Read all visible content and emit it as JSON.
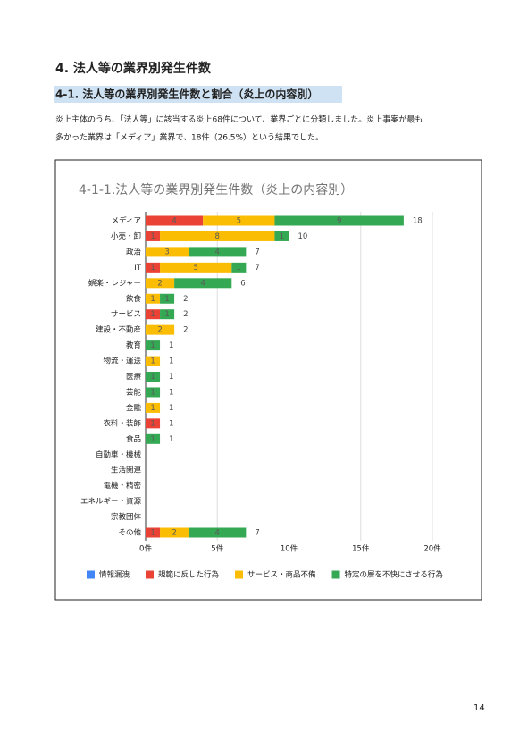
{
  "heading": "4. 法人等の業界別発生件数",
  "subheading": "4-1. 法人等の業界別発生件数と割合（炎上の内容別）",
  "paragraph": [
    "炎上主体のうち、「法人等」に該当する炎上68件について、業界ごとに分類しました。炎上事案が最も",
    "多かった業界は「メディア」業界で、18件（26.5%）という結果でした。"
  ],
  "chart_data": {
    "type": "bar",
    "orientation": "horizontal",
    "stacked": true,
    "title": "4-1-1.法人等の業界別発生件数（炎上の内容別）",
    "categories": [
      "メディア",
      "小売・卸",
      "政治",
      "IT",
      "娯楽・レジャー",
      "飲食",
      "サービス",
      "建設・不動産",
      "教育",
      "物流・運送",
      "医療",
      "芸能",
      "金融",
      "衣料・装飾",
      "食品",
      "自動車・機械",
      "生活関連",
      "電機・精密",
      "エネルギー・資源",
      "宗教団体",
      "その他"
    ],
    "series": [
      {
        "name": "情報漏洩",
        "color": "#4285f4",
        "values": [
          0,
          0,
          0,
          0,
          0,
          0,
          0,
          0,
          0,
          0,
          0,
          0,
          0,
          0,
          0,
          0,
          0,
          0,
          0,
          0,
          0
        ]
      },
      {
        "name": "規範に反した行為",
        "color": "#ea4335",
        "values": [
          4,
          1,
          0,
          1,
          0,
          0,
          1,
          0,
          0,
          0,
          0,
          0,
          0,
          1,
          0,
          0,
          0,
          0,
          0,
          0,
          1
        ]
      },
      {
        "name": "サービス・商品不備",
        "color": "#fbbc04",
        "values": [
          5,
          8,
          3,
          5,
          2,
          1,
          0,
          2,
          0,
          1,
          0,
          0,
          1,
          0,
          0,
          0,
          0,
          0,
          0,
          0,
          2
        ]
      },
      {
        "name": "特定の層を不快にさせる行為",
        "color": "#34a853",
        "values": [
          9,
          1,
          4,
          1,
          4,
          1,
          1,
          0,
          1,
          0,
          1,
          1,
          0,
          0,
          1,
          0,
          0,
          0,
          0,
          0,
          4
        ]
      }
    ],
    "totals": [
      18,
      10,
      7,
      7,
      6,
      2,
      2,
      2,
      1,
      1,
      1,
      1,
      1,
      1,
      1,
      null,
      null,
      null,
      null,
      null,
      7
    ],
    "xlim": [
      0,
      20
    ],
    "xticks": [
      {
        "value": 0,
        "label": "0件"
      },
      {
        "value": 5,
        "label": "5件"
      },
      {
        "value": 10,
        "label": "10件"
      },
      {
        "value": 15,
        "label": "15件"
      },
      {
        "value": 20,
        "label": "20件"
      }
    ],
    "grid": true,
    "legend": "bottom"
  },
  "page_number": 14
}
